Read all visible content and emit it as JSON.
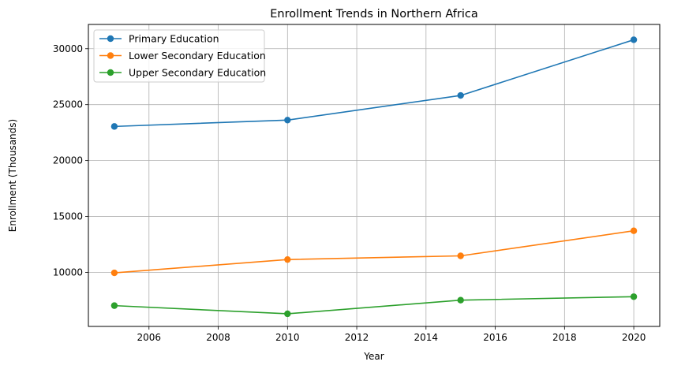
{
  "chart_data": {
    "type": "line",
    "title": "Enrollment Trends in Northern Africa",
    "xlabel": "Year",
    "ylabel": "Enrollment (Thousands)",
    "x": [
      2005,
      2010,
      2015,
      2020
    ],
    "xlim": [
      2004.25,
      2020.75
    ],
    "ylim": [
      5170,
      32170
    ],
    "x_ticks": [
      2006,
      2008,
      2010,
      2012,
      2014,
      2016,
      2018,
      2020
    ],
    "y_ticks": [
      10000,
      15000,
      20000,
      25000,
      30000
    ],
    "grid": true,
    "legend_position": "top-left",
    "series": [
      {
        "name": "Primary Education",
        "color": "#1f77b4",
        "values": [
          23050,
          23620,
          25820,
          30800
        ]
      },
      {
        "name": "Lower Secondary Education",
        "color": "#ff7f0e",
        "values": [
          9960,
          11150,
          11480,
          13720
        ]
      },
      {
        "name": "Upper Secondary Education",
        "color": "#2ca02c",
        "values": [
          7030,
          6300,
          7520,
          7830
        ]
      }
    ]
  }
}
